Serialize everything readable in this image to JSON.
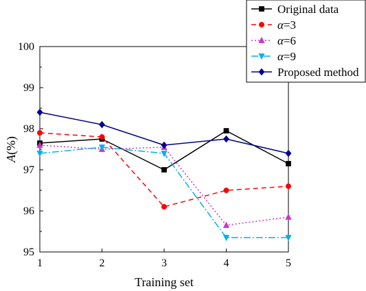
{
  "chart_data": {
    "type": "line",
    "xlabel": "Training set",
    "ylabel_italic": "A",
    "ylabel_rest": "(%)",
    "ylim": [
      95,
      100
    ],
    "xlim": [
      1,
      5
    ],
    "x": [
      1,
      2,
      3,
      4,
      5
    ],
    "xticks": [
      "1",
      "2",
      "3",
      "4",
      "5"
    ],
    "yticks": [
      "95",
      "96",
      "97",
      "98",
      "99",
      "100"
    ],
    "grid": false,
    "legend_position": "top-right",
    "series": [
      {
        "name": "Original data",
        "name_italic": "",
        "name_rest": "Original data",
        "values": [
          97.65,
          97.75,
          97.0,
          97.95,
          97.15
        ],
        "color": "#000000",
        "dash": "",
        "marker": "square"
      },
      {
        "name": "α=3",
        "name_italic": "α",
        "name_rest": "=3",
        "values": [
          97.9,
          97.8,
          96.1,
          96.5,
          96.6
        ],
        "color": "#ff0000",
        "dash": "7,5",
        "marker": "circle"
      },
      {
        "name": "α=6",
        "name_italic": "α",
        "name_rest": "=6",
        "values": [
          97.6,
          97.5,
          97.55,
          95.65,
          95.85
        ],
        "color": "#cc33cc",
        "dash": "2,3",
        "marker": "triangle-up"
      },
      {
        "name": "α=9",
        "name_italic": "α",
        "name_rest": "=9",
        "values": [
          97.4,
          97.55,
          97.4,
          95.35,
          95.35
        ],
        "color": "#00b0f0",
        "dash": "10,3,2,3",
        "marker": "triangle-down"
      },
      {
        "name": "Proposed method",
        "name_italic": "",
        "name_rest": "Proposed method",
        "values": [
          98.4,
          98.1,
          97.6,
          97.75,
          97.4
        ],
        "color": "#00008b",
        "dash": "",
        "marker": "diamond"
      }
    ]
  }
}
